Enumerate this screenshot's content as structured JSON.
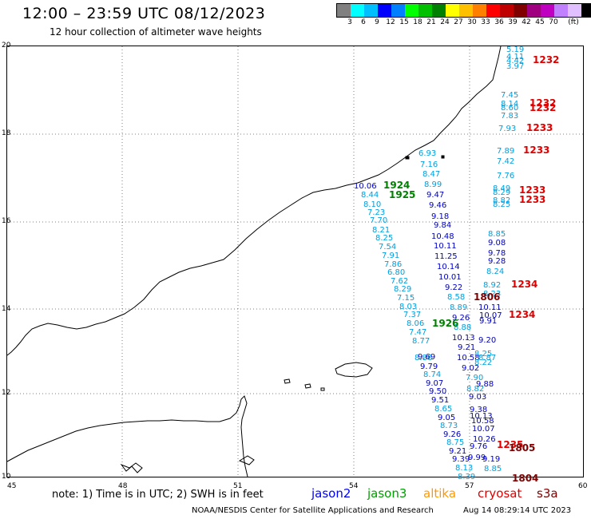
{
  "title": "12:00 – 23:59 UTC 08/12/2023",
  "subtitle": "12 hour collection of altimeter wave heights",
  "scale": {
    "colors": [
      "#808080",
      "#00ffff",
      "#00bfff",
      "#0000ff",
      "#0080ff",
      "#00ff00",
      "#00c000",
      "#008000",
      "#ffff00",
      "#ffc000",
      "#ff8000",
      "#ff0000",
      "#c00000",
      "#800000",
      "#a00080",
      "#c000c0",
      "#c080ff",
      "#e0c0ff",
      "#000000"
    ],
    "labels": [
      "3",
      "6",
      "9",
      "12",
      "15",
      "18",
      "21",
      "24",
      "27",
      "30",
      "33",
      "36",
      "39",
      "42",
      "45",
      "70",
      "(ft)"
    ]
  },
  "axes": {
    "x_ticks": [
      "45",
      "48",
      "51",
      "54",
      "57",
      "60"
    ],
    "y_ticks": [
      "20",
      "18",
      "16",
      "14",
      "12",
      "10"
    ]
  },
  "labels": [
    {
      "t": "5.19",
      "c": "#00a0e0"
    },
    {
      "t": "4.11",
      "c": "#00a0e0"
    },
    {
      "t": "4.42",
      "c": "#00a0e0"
    },
    {
      "t": "3.97",
      "c": "#00a0e0"
    },
    {
      "t": "7.45",
      "c": "#00a0e0"
    },
    {
      "t": "8.14",
      "c": "#00a0e0"
    },
    {
      "t": "8.60",
      "c": "#00a0e0"
    },
    {
      "t": "7.83",
      "c": "#00a0e0"
    },
    {
      "t": "7.93",
      "c": "#00a0e0"
    },
    {
      "t": "7.89",
      "c": "#00a0e0"
    },
    {
      "t": "7.42",
      "c": "#00a0e0"
    },
    {
      "t": "7.76",
      "c": "#00a0e0"
    },
    {
      "t": "8.49",
      "c": "#00a0e0"
    },
    {
      "t": "8.29",
      "c": "#00a0e0"
    },
    {
      "t": "8.82",
      "c": "#00a0e0"
    },
    {
      "t": "8.25",
      "c": "#00a0e0"
    },
    {
      "t": "6.93",
      "c": "#00a0e0"
    },
    {
      "t": "7.16",
      "c": "#00a0e0"
    },
    {
      "t": "8.47",
      "c": "#00a0e0"
    },
    {
      "t": "8.99",
      "c": "#00a0e0"
    },
    {
      "t": "10.06",
      "c": "#0000c0"
    },
    {
      "t": "8.44",
      "c": "#00a0e0"
    },
    {
      "t": "8.10",
      "c": "#00a0e0"
    },
    {
      "t": "7.23",
      "c": "#00a0e0"
    },
    {
      "t": "7.70",
      "c": "#00a0e0"
    },
    {
      "t": "8.21",
      "c": "#00a0e0"
    },
    {
      "t": "8.25",
      "c": "#00a0e0"
    },
    {
      "t": "7.54",
      "c": "#00a0e0"
    },
    {
      "t": "7.91",
      "c": "#00a0e0"
    },
    {
      "t": "7.86",
      "c": "#00a0e0"
    },
    {
      "t": "6.80",
      "c": "#00a0e0"
    },
    {
      "t": "7.62",
      "c": "#00a0e0"
    },
    {
      "t": "8.29",
      "c": "#00a0e0"
    },
    {
      "t": "7.15",
      "c": "#00a0e0"
    },
    {
      "t": "8.03",
      "c": "#00a0e0"
    },
    {
      "t": "7.37",
      "c": "#00a0e0"
    },
    {
      "t": "8.06",
      "c": "#00a0e0"
    },
    {
      "t": "7.47",
      "c": "#00a0e0"
    },
    {
      "t": "8.77",
      "c": "#00a0e0"
    },
    {
      "t": "8.86",
      "c": "#00a0e0"
    },
    {
      "t": "9.69",
      "c": "#0000c0"
    },
    {
      "t": "9.79",
      "c": "#0000c0"
    },
    {
      "t": "8.74",
      "c": "#00a0e0"
    },
    {
      "t": "9.07",
      "c": "#0000c0"
    },
    {
      "t": "9.50",
      "c": "#0000c0"
    },
    {
      "t": "9.51",
      "c": "#0000c0"
    },
    {
      "t": "8.65",
      "c": "#00a0e0"
    },
    {
      "t": "9.05",
      "c": "#0000c0"
    },
    {
      "t": "8.73",
      "c": "#00a0e0"
    },
    {
      "t": "9.26",
      "c": "#0000c0"
    },
    {
      "t": "8.75",
      "c": "#00a0e0"
    },
    {
      "t": "9.21",
      "c": "#0000c0"
    },
    {
      "t": "9.39",
      "c": "#0000c0"
    },
    {
      "t": "8.13",
      "c": "#00a0e0"
    },
    {
      "t": "8.39",
      "c": "#00a0e0"
    },
    {
      "t": "9.47",
      "c": "#0000c0"
    },
    {
      "t": "9.46",
      "c": "#0000c0"
    },
    {
      "t": "9.18",
      "c": "#0000c0"
    },
    {
      "t": "9.84",
      "c": "#0000c0"
    },
    {
      "t": "10.48",
      "c": "#0000c0"
    },
    {
      "t": "10.11",
      "c": "#0000c0"
    },
    {
      "t": "11.25",
      "c": "#0000c0"
    },
    {
      "t": "10.14",
      "c": "#0000c0"
    },
    {
      "t": "10.01",
      "c": "#0000c0"
    },
    {
      "t": "9.22",
      "c": "#0000c0"
    },
    {
      "t": "8.58",
      "c": "#00a0e0"
    },
    {
      "t": "8.89",
      "c": "#00a0e0"
    },
    {
      "t": "9.26",
      "c": "#0000c0"
    },
    {
      "t": "8.88",
      "c": "#00a0e0"
    },
    {
      "t": "10.13",
      "c": "#0000c0"
    },
    {
      "t": "9.21",
      "c": "#0000c0"
    },
    {
      "t": "10.58",
      "c": "#0000c0"
    },
    {
      "t": "9.02",
      "c": "#0000c0"
    },
    {
      "t": "7.90",
      "c": "#00a0e0"
    },
    {
      "t": "8.82",
      "c": "#00a0e0"
    },
    {
      "t": "9.03",
      "c": "#0000c0"
    },
    {
      "t": "9.38",
      "c": "#0000c0"
    },
    {
      "t": "10.13",
      "c": "#0000c0"
    },
    {
      "t": "10.58",
      "c": "#0000c0"
    },
    {
      "t": "10.07",
      "c": "#0000c0"
    },
    {
      "t": "10.26",
      "c": "#0000c0"
    },
    {
      "t": "9.76",
      "c": "#0000c0"
    },
    {
      "t": "9.99",
      "c": "#0000c0"
    },
    {
      "t": "9.19",
      "c": "#0000c0"
    },
    {
      "t": "8.85",
      "c": "#00a0e0"
    },
    {
      "t": "8.85",
      "c": "#00a0e0"
    },
    {
      "t": "9.08",
      "c": "#0000c0"
    },
    {
      "t": "9.78",
      "c": "#0000c0"
    },
    {
      "t": "9.28",
      "c": "#0000c0"
    },
    {
      "t": "8.24",
      "c": "#00a0e0"
    },
    {
      "t": "8.92",
      "c": "#00a0e0"
    },
    {
      "t": "8.23",
      "c": "#00a0e0"
    },
    {
      "t": "10.11",
      "c": "#0000c0"
    },
    {
      "t": "10.07",
      "c": "#0000c0"
    },
    {
      "t": "9.91",
      "c": "#0000c0"
    },
    {
      "t": "9.20",
      "c": "#0000c0"
    },
    {
      "t": "8.25",
      "c": "#00a0e0"
    },
    {
      "t": "8.87",
      "c": "#00a0e0"
    },
    {
      "t": "8.22",
      "c": "#00a0e0"
    },
    {
      "t": "9.88",
      "c": "#0000c0"
    }
  ],
  "passes": [
    {
      "t": "1232",
      "c": "#e00000"
    },
    {
      "t": "1232",
      "c": "#e00000"
    },
    {
      "t": "1232",
      "c": "#e00000"
    },
    {
      "t": "1233",
      "c": "#e00000"
    },
    {
      "t": "1233",
      "c": "#e00000"
    },
    {
      "t": "1233",
      "c": "#e00000"
    },
    {
      "t": "1233",
      "c": "#e00000"
    },
    {
      "t": "1924",
      "c": "#008000"
    },
    {
      "t": "1925",
      "c": "#008000"
    },
    {
      "t": "1926",
      "c": "#008000"
    },
    {
      "t": "1234",
      "c": "#e00000"
    },
    {
      "t": "1234",
      "c": "#e00000"
    },
    {
      "t": "1806",
      "c": "#800000"
    },
    {
      "t": "1235",
      "c": "#e00000"
    },
    {
      "t": "1805",
      "c": "#800000"
    },
    {
      "t": "1804",
      "c": "#800000"
    }
  ],
  "note": "note: 1) Time is in UTC; 2) SWH is in feet",
  "missions": [
    {
      "name": "jason2",
      "color": "#0000ff"
    },
    {
      "name": "jason3",
      "color": "#00a000"
    },
    {
      "name": "altika",
      "color": "#ff9900"
    },
    {
      "name": "cryosat",
      "color": "#e00000"
    },
    {
      "name": "s3a",
      "color": "#800000"
    }
  ],
  "footer_left": "NOAA/NESDIS Center for Satellite Applications and Research",
  "footer_right": "Aug 14 08:29:14 UTC 2023"
}
